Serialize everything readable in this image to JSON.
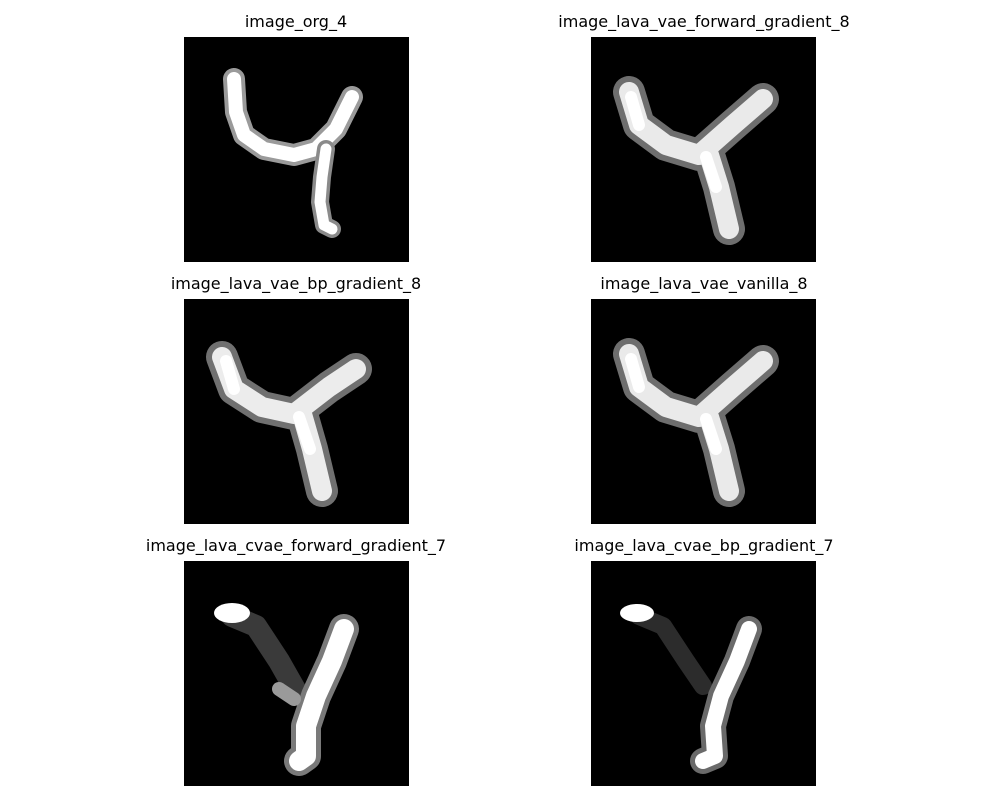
{
  "panels": [
    {
      "title": "image_org_4"
    },
    {
      "title": "image_lava_vae_forward_gradient_8"
    },
    {
      "title": "image_lava_vae_bp_gradient_8"
    },
    {
      "title": "image_lava_vae_vanilla_8"
    },
    {
      "title": "image_lava_cvae_forward_gradient_7"
    },
    {
      "title": "image_lava_cvae_bp_gradient_7"
    }
  ]
}
